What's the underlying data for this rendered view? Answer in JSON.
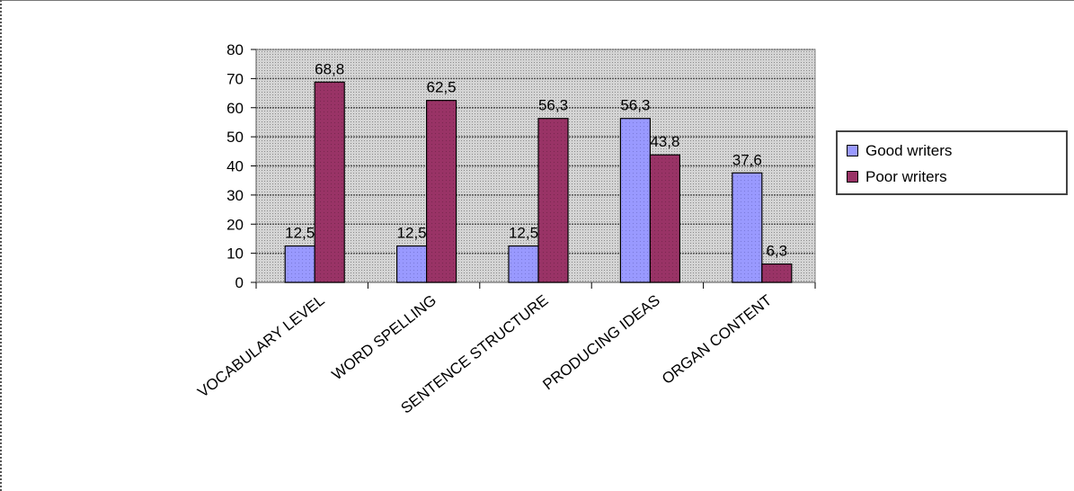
{
  "chart_data": {
    "type": "bar",
    "categories": [
      "VOCABULARY LEVEL",
      "WORD SPELLING",
      "SENTENCE STRUCTURE",
      "PRODUCING IDEAS",
      "ORGAN CONTENT"
    ],
    "series": [
      {
        "name": "Good writers",
        "values": [
          12.5,
          12.5,
          12.5,
          56.3,
          37.6
        ],
        "labels": [
          "12,5",
          "12,5",
          "12,5",
          "56,3",
          "37,6"
        ],
        "color": "#9999ff"
      },
      {
        "name": "Poor writers",
        "values": [
          68.8,
          62.5,
          56.3,
          43.8,
          6.3
        ],
        "labels": [
          "68,8",
          "62,5",
          "56,3",
          "43,8",
          "6,3"
        ],
        "color": "#993366"
      }
    ],
    "yticks": [
      "0",
      "10",
      "20",
      "30",
      "40",
      "50",
      "60",
      "70",
      "80"
    ],
    "ylim": [
      0,
      80
    ],
    "grid": true,
    "plot_background": "#c0c0c0",
    "legend_position": "right"
  }
}
